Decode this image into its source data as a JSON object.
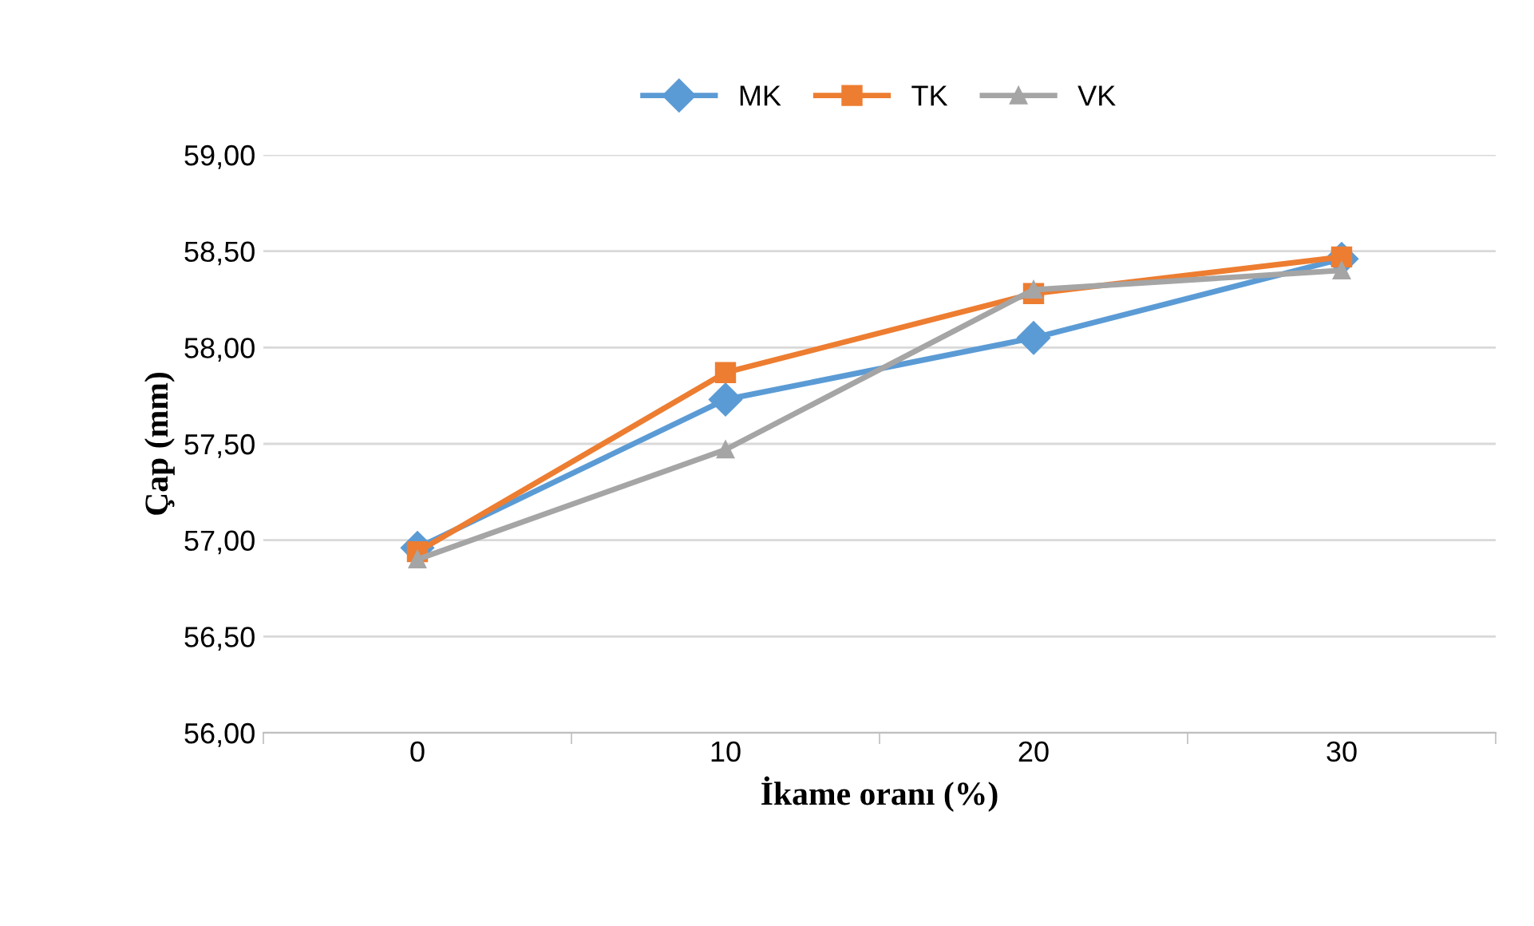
{
  "chart_data": {
    "type": "line",
    "xlabel": "İkame oranı (%)",
    "ylabel": "Çap (mm)",
    "categories": [
      "0",
      "10",
      "20",
      "30"
    ],
    "series": [
      {
        "name": "MK",
        "color": "#5b9bd5",
        "values": [
          56.96,
          57.73,
          58.05,
          58.46
        ],
        "marker": "diamond"
      },
      {
        "name": "TK",
        "color": "#ed7d31",
        "values": [
          56.94,
          57.87,
          58.28,
          58.47
        ],
        "marker": "square"
      },
      {
        "name": "VK",
        "color": "#a5a5a5",
        "values": [
          56.9,
          57.47,
          58.3,
          58.4
        ],
        "marker": "triangle"
      }
    ],
    "ylim": [
      56.0,
      59.0
    ],
    "yticks": [
      {
        "value": 56.0,
        "label": "56,00"
      },
      {
        "value": 56.5,
        "label": "56,50"
      },
      {
        "value": 57.0,
        "label": "57,00"
      },
      {
        "value": 57.5,
        "label": "57,50"
      },
      {
        "value": 58.0,
        "label": "58,00"
      },
      {
        "value": 58.5,
        "label": "58,50"
      },
      {
        "value": 59.0,
        "label": "59,00"
      }
    ],
    "grid": "y",
    "legend": "top",
    "line_style": "solid"
  }
}
